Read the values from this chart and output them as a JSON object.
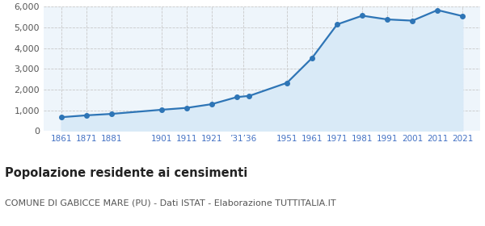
{
  "years": [
    1861,
    1871,
    1881,
    1901,
    1911,
    1921,
    1931,
    1936,
    1951,
    1961,
    1971,
    1981,
    1991,
    2001,
    2011,
    2021
  ],
  "population": [
    670,
    760,
    830,
    1030,
    1120,
    1300,
    1640,
    1700,
    2330,
    3530,
    5150,
    5570,
    5390,
    5330,
    5840,
    5550
  ],
  "line_color": "#2e75b6",
  "fill_color": "#d9eaf7",
  "marker_color": "#2e75b6",
  "background_color": "#eef5fb",
  "grid_color": "#c8c8c8",
  "x_tick_positions": [
    1861,
    1871,
    1881,
    1901,
    1911,
    1921,
    1933.5,
    1951,
    1961,
    1971,
    1981,
    1991,
    2001,
    2011,
    2021
  ],
  "x_tick_labels": [
    "1861",
    "1871",
    "1881",
    "1901",
    "1911",
    "1921",
    "’31’36",
    "1951",
    "1961",
    "1971",
    "1981",
    "1991",
    "2001",
    "2011",
    "2021"
  ],
  "xlim": [
    1854,
    2028
  ],
  "ylim": [
    0,
    6000
  ],
  "yticks": [
    0,
    1000,
    2000,
    3000,
    4000,
    5000,
    6000
  ],
  "title": "Popolazione residente ai censimenti",
  "subtitle": "COMUNE DI GABICCE MARE (PU) - Dati ISTAT - Elaborazione TUTTITALIA.IT",
  "title_fontsize": 10.5,
  "subtitle_fontsize": 8,
  "tick_label_color": "#4472c4",
  "ytick_label_color": "#555555",
  "marker_size": 4,
  "line_width": 1.6
}
